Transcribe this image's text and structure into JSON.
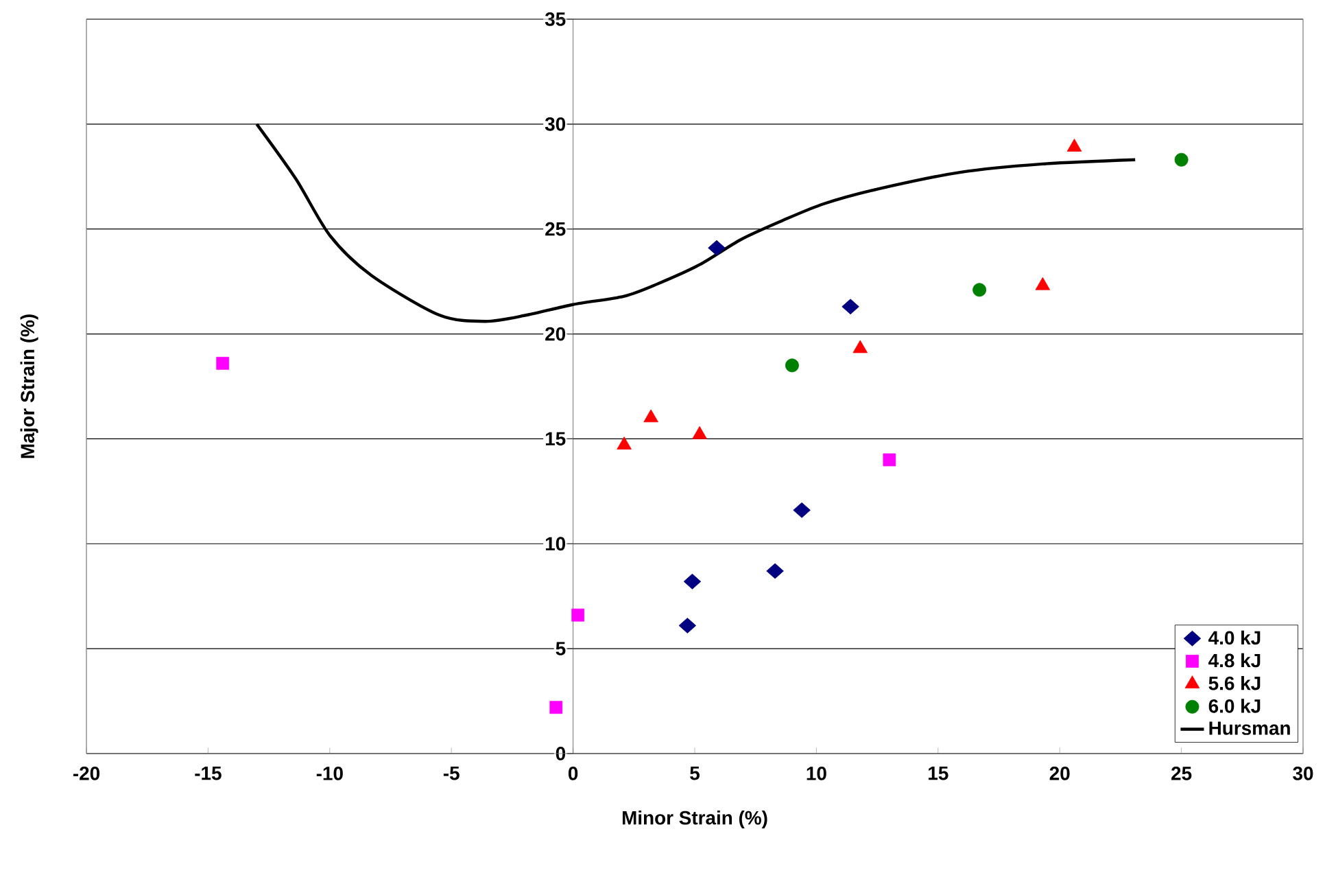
{
  "chart_data": {
    "type": "scatter",
    "xlabel": "Minor Strain (%)",
    "ylabel": "Major Strain (%)",
    "xlim": [
      -20,
      30
    ],
    "xticks": [
      -20,
      -15,
      -10,
      -5,
      0,
      5,
      10,
      15,
      20,
      25,
      30
    ],
    "ylim": [
      0,
      35
    ],
    "yticks": [
      0,
      5,
      10,
      15,
      20,
      25,
      30,
      35
    ],
    "grid": "y",
    "legend": "bottom right",
    "series": [
      {
        "name": "4.0 kJ",
        "color": "#000080",
        "marker": "diamond",
        "x": [
          5.9,
          11.4,
          9.4,
          8.3,
          4.9,
          4.7
        ],
        "values": [
          24.1,
          21.3,
          11.6,
          8.7,
          8.2,
          6.1
        ]
      },
      {
        "name": "4.8 kJ",
        "color": "#ff00ff",
        "marker": "square",
        "x": [
          -14.4,
          13.0,
          0.2,
          -0.7
        ],
        "values": [
          18.6,
          14.0,
          6.6,
          2.2
        ]
      },
      {
        "name": "5.6 kJ",
        "color": "#ff0000",
        "marker": "triangle",
        "x": [
          20.6,
          19.3,
          11.8,
          3.2,
          2.1,
          5.2
        ],
        "values": [
          28.9,
          22.3,
          19.3,
          16.0,
          14.7,
          15.2
        ]
      },
      {
        "name": "6.0 kJ",
        "color": "#008000",
        "marker": "circle",
        "x": [
          25.0,
          16.7,
          9.0
        ],
        "values": [
          28.3,
          22.1,
          18.5
        ]
      },
      {
        "name": "Hursman",
        "type": "line",
        "color": "#000000",
        "marker": "none",
        "line_style": "solid",
        "x": [
          -13.0,
          -11.4,
          -10.0,
          -8.3,
          -5.5,
          -3.6,
          -1.9,
          0,
          2.1,
          3.5,
          5.2,
          6.9,
          8.6,
          10.3,
          12.5,
          15.9,
          19.3,
          23.1
        ],
        "values": [
          30.0,
          27.4,
          24.7,
          22.8,
          20.9,
          20.6,
          20.9,
          21.4,
          21.8,
          22.4,
          23.3,
          24.5,
          25.4,
          26.2,
          26.9,
          27.7,
          28.1,
          28.3
        ]
      }
    ]
  }
}
